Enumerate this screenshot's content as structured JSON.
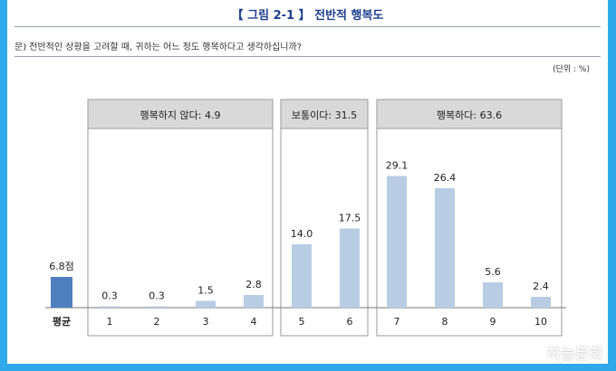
{
  "page": {
    "title": "【 그림 2-1 】 전반적 행복도",
    "question": "문) 전반적인 상황을 고려할 때, 귀하는 어느 정도 행복하다고 생각하십니까?",
    "unit": "(단위 : %)",
    "watermark": "하늘문화"
  },
  "chart_data": {
    "type": "bar",
    "average": {
      "label": "평균",
      "value_label": "6.8점",
      "value": 6.8,
      "color": "#4f7fbf"
    },
    "groups": [
      {
        "label": "행복하지 않다: 4.9",
        "categories": [
          "1",
          "2",
          "3",
          "4"
        ]
      },
      {
        "label": "보통이다: 31.5",
        "categories": [
          "5",
          "6"
        ]
      },
      {
        "label": "행복하다: 63.6",
        "categories": [
          "7",
          "8",
          "9",
          "10"
        ]
      }
    ],
    "categories": [
      "1",
      "2",
      "3",
      "4",
      "5",
      "6",
      "7",
      "8",
      "9",
      "10"
    ],
    "values": [
      0.3,
      0.3,
      1.5,
      2.8,
      14.0,
      17.5,
      29.1,
      26.4,
      5.6,
      2.4
    ],
    "value_labels": [
      "0.3",
      "0.3",
      "1.5",
      "2.8",
      "14.0",
      "17.5",
      "29.1",
      "26.4",
      "5.6",
      "2.4"
    ],
    "bar_color": "#b8cce4",
    "group_header_color": "#d9d9d9",
    "ylim": [
      0,
      30
    ]
  }
}
